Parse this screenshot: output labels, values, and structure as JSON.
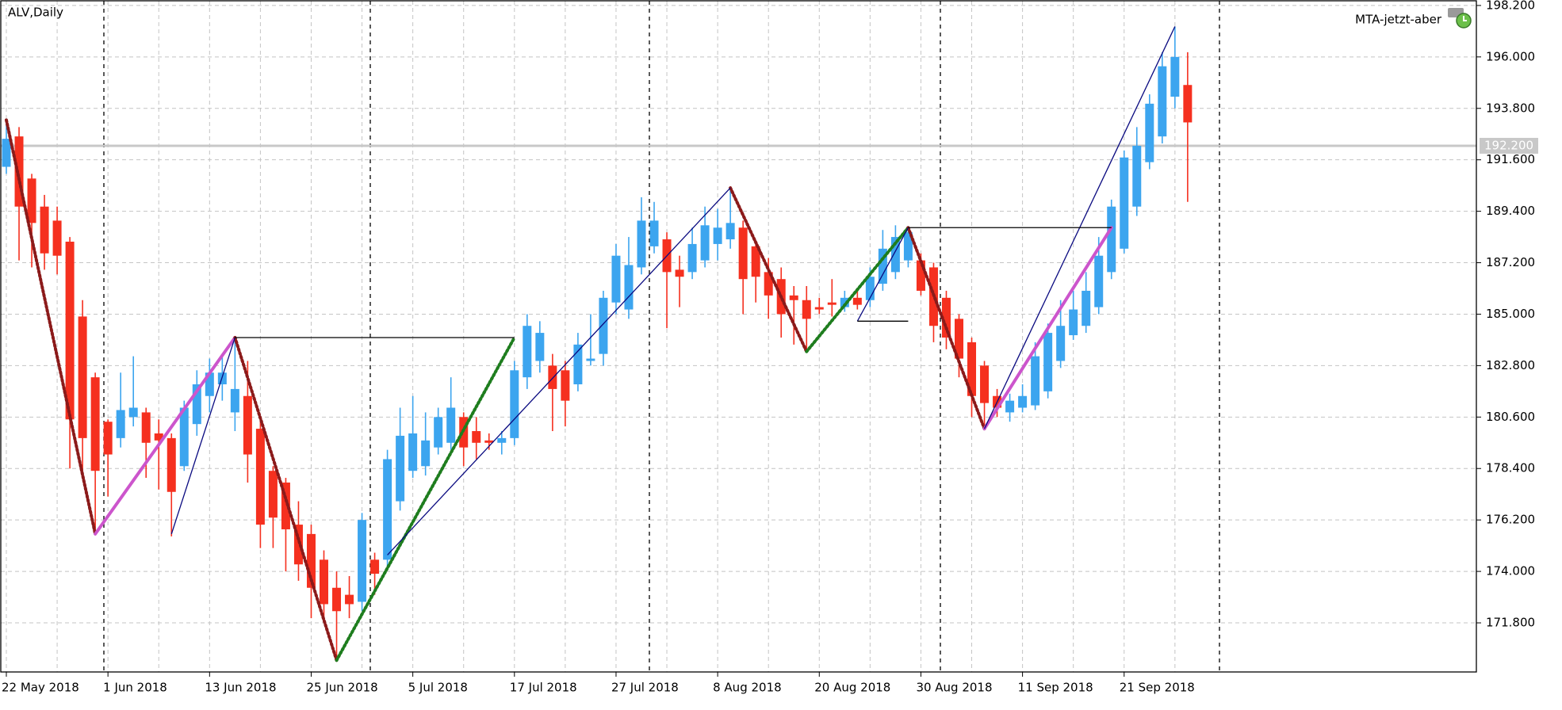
{
  "chart_data": {
    "type": "candlestick",
    "title": "ALV,Daily",
    "indicator": "MTA-jetzt-aber",
    "categories": [
      "22 May 2018",
      null,
      null,
      null,
      null,
      null,
      null,
      null,
      "1 Jun 2018",
      null,
      null,
      null,
      null,
      null,
      null,
      null,
      "13 Jun 2018",
      null,
      null,
      null,
      null,
      null,
      null,
      null,
      "25 Jun 2018",
      null,
      null,
      null,
      null,
      null,
      null,
      null,
      "5 Jul 2018",
      null,
      null,
      null,
      null,
      null,
      null,
      null,
      "17 Jul 2018",
      null,
      null,
      null,
      null,
      null,
      null,
      null,
      "27 Jul 2018",
      null,
      null,
      null,
      null,
      null,
      null,
      null,
      "8 Aug 2018",
      null,
      null,
      null,
      null,
      null,
      null,
      null,
      "20 Aug 2018",
      null,
      null,
      null,
      null,
      null,
      null,
      null,
      "30 Aug 2018",
      null,
      null,
      null,
      null,
      null,
      null,
      null,
      "11 Sep 2018",
      null,
      null,
      null,
      null,
      null,
      null,
      null,
      "21 Sep 2018",
      null,
      null,
      null,
      null,
      null
    ],
    "open": [
      191.3,
      192.6,
      190.8,
      189.6,
      189.0,
      188.1,
      184.9,
      182.3,
      180.4,
      179.7,
      180.6,
      180.8,
      179.9,
      179.7,
      178.5,
      180.3,
      181.5,
      182.0,
      180.8,
      181.5,
      180.1,
      178.3,
      177.8,
      176.0,
      175.6,
      174.5,
      173.3,
      173.0,
      172.7,
      174.5,
      174.5,
      177.0,
      178.3,
      178.5,
      179.3,
      179.5,
      180.6,
      180.0,
      179.6,
      179.5,
      179.7,
      182.3,
      183.0,
      182.8,
      182.6,
      182.0,
      183.0,
      183.3,
      185.5,
      185.2,
      187.0,
      187.9,
      188.2,
      186.9,
      186.8,
      187.3,
      188.0,
      188.2,
      188.7,
      187.9,
      186.8,
      186.5,
      185.8,
      185.6,
      185.3,
      185.5,
      185.3,
      185.7,
      185.6,
      186.3,
      186.8,
      187.3,
      187.3,
      187.0,
      185.7,
      184.8,
      183.8,
      182.8,
      181.5,
      180.8,
      181.0,
      181.1,
      181.7,
      183.0,
      184.1,
      184.5,
      185.3,
      186.8,
      187.8,
      189.6,
      191.5,
      192.6,
      194.3,
      194.8
    ],
    "high": [
      193.3,
      193.0,
      191.0,
      190.1,
      189.6,
      188.3,
      185.6,
      182.5,
      180.5,
      182.5,
      183.2,
      181.0,
      180.5,
      179.9,
      181.3,
      182.6,
      183.1,
      183.3,
      184.0,
      183.0,
      180.5,
      178.5,
      178.0,
      177.0,
      176.0,
      174.9,
      174.0,
      173.8,
      176.5,
      174.8,
      179.2,
      181.0,
      181.5,
      180.8,
      181.0,
      182.3,
      180.8,
      180.6,
      179.9,
      180.0,
      183.0,
      185.0,
      184.7,
      183.3,
      183.0,
      184.2,
      185.0,
      186.0,
      188.0,
      188.3,
      190.0,
      189.8,
      188.5,
      187.5,
      188.7,
      189.6,
      189.5,
      190.4,
      189.0,
      188.1,
      187.4,
      187.0,
      186.2,
      186.2,
      185.7,
      186.5,
      186.0,
      186.1,
      187.0,
      188.6,
      188.8,
      188.7,
      187.6,
      187.2,
      186.0,
      185.0,
      184.0,
      183.0,
      181.8,
      181.6,
      182.0,
      183.8,
      184.6,
      185.6,
      186.0,
      186.8,
      188.3,
      189.9,
      192.0,
      193.0,
      194.4,
      196.2,
      197.3,
      196.2
    ],
    "low": [
      191.0,
      187.3,
      187.0,
      186.9,
      186.7,
      178.4,
      178.0,
      175.6,
      177.2,
      179.3,
      180.2,
      178.0,
      177.5,
      175.5,
      178.3,
      179.8,
      180.8,
      181.3,
      180.0,
      177.8,
      175.0,
      175.0,
      174.0,
      173.6,
      172.0,
      171.8,
      170.2,
      172.0,
      172.3,
      173.0,
      174.2,
      176.6,
      178.0,
      178.1,
      179.0,
      179.2,
      178.5,
      178.8,
      179.2,
      179.0,
      179.4,
      181.8,
      182.5,
      180.0,
      180.2,
      181.7,
      182.8,
      182.8,
      185.0,
      184.8,
      186.7,
      187.6,
      184.4,
      185.3,
      186.5,
      187.0,
      187.3,
      187.8,
      185.0,
      185.5,
      184.8,
      184.0,
      183.7,
      183.4,
      185.0,
      184.9,
      185.1,
      185.2,
      185.3,
      186.0,
      186.5,
      187.0,
      185.8,
      183.8,
      183.5,
      182.3,
      180.6,
      180.1,
      180.6,
      180.4,
      180.8,
      180.9,
      181.4,
      182.7,
      183.9,
      184.2,
      185.0,
      186.5,
      187.6,
      189.2,
      191.2,
      192.3,
      193.8,
      189.8
    ],
    "close": [
      192.5,
      189.6,
      188.9,
      187.6,
      187.5,
      180.5,
      179.7,
      178.3,
      179.0,
      180.9,
      181.0,
      179.5,
      179.6,
      177.4,
      181.0,
      182.0,
      182.5,
      182.5,
      181.8,
      179.0,
      176.0,
      176.3,
      175.8,
      174.3,
      173.3,
      172.6,
      172.3,
      172.6,
      176.2,
      173.9,
      178.8,
      179.8,
      179.9,
      179.6,
      180.6,
      181.0,
      179.3,
      179.5,
      179.5,
      179.7,
      182.6,
      184.5,
      184.2,
      181.8,
      181.3,
      183.7,
      183.1,
      185.7,
      187.5,
      187.1,
      189.0,
      189.0,
      186.8,
      186.6,
      188.0,
      188.8,
      188.7,
      188.9,
      186.5,
      186.6,
      185.8,
      185.0,
      185.6,
      184.8,
      185.2,
      185.4,
      185.7,
      185.4,
      186.6,
      187.8,
      188.3,
      188.5,
      186.0,
      184.5,
      184.0,
      183.1,
      181.5,
      181.2,
      181.0,
      181.3,
      181.5,
      183.2,
      184.2,
      184.5,
      185.2,
      186.0,
      187.5,
      189.6,
      191.7,
      192.2,
      194.0,
      195.6,
      196.0,
      193.2
    ],
    "up_color": "#3ca5ef",
    "down_color": "#f5301f",
    "ylim": [
      169.7,
      198.4
    ],
    "yticks": [
      {
        "value": 198.2,
        "label": "198.200"
      },
      {
        "value": 196.0,
        "label": "196.000"
      },
      {
        "value": 193.8,
        "label": "193.800"
      },
      {
        "value": 191.6,
        "label": "191.600"
      },
      {
        "value": 189.4,
        "label": "189.400"
      },
      {
        "value": 187.2,
        "label": "187.200"
      },
      {
        "value": 185.0,
        "label": "185.000"
      },
      {
        "value": 182.8,
        "label": "182.800"
      },
      {
        "value": 180.6,
        "label": "180.600"
      },
      {
        "value": 178.4,
        "label": "178.400"
      },
      {
        "value": 176.2,
        "label": "176.200"
      },
      {
        "value": 174.0,
        "label": "174.000"
      },
      {
        "value": 171.8,
        "label": "171.800"
      }
    ],
    "grid": true,
    "price_line": {
      "value": 192.2,
      "label": "192.200",
      "color": "#c8c8c8"
    },
    "overlays": [
      {
        "color": "#8b1a1a",
        "style": "dotted",
        "x": [
          0,
          7
        ],
        "y": [
          193.3,
          175.6
        ]
      },
      {
        "color": "#cc55cc",
        "style": "thick",
        "x": [
          7,
          18
        ],
        "y": [
          175.6,
          184.0
        ]
      },
      {
        "color": "#8b1a1a",
        "style": "dotted",
        "x": [
          18,
          26
        ],
        "y": [
          184.0,
          170.2
        ]
      },
      {
        "color": "#1e7d1e",
        "style": "dotted",
        "x": [
          26,
          40
        ],
        "y": [
          170.2,
          184.0
        ]
      },
      {
        "color": "#8b1a1a",
        "style": "dotted",
        "x": [
          57,
          63
        ],
        "y": [
          190.4,
          183.4
        ]
      },
      {
        "color": "#1e7d1e",
        "style": "dotted",
        "x": [
          63,
          71
        ],
        "y": [
          183.4,
          188.7
        ]
      },
      {
        "color": "#8b1a1a",
        "style": "dotted",
        "x": [
          71,
          77
        ],
        "y": [
          188.7,
          180.1
        ]
      },
      {
        "color": "#cc55cc",
        "style": "thick",
        "x": [
          77,
          87
        ],
        "y": [
          180.1,
          188.7
        ]
      },
      {
        "color": "#0a0a80",
        "style": "thin",
        "x": [
          13,
          18
        ],
        "y": [
          175.6,
          184.0
        ]
      },
      {
        "color": "#0a0a80",
        "style": "thin",
        "x": [
          30,
          57
        ],
        "y": [
          174.7,
          190.4
        ]
      },
      {
        "color": "#0a0a80",
        "style": "thin",
        "x": [
          67,
          71
        ],
        "y": [
          184.7,
          188.7
        ]
      },
      {
        "color": "#0a0a80",
        "style": "thin",
        "x": [
          77,
          92
        ],
        "y": [
          180.1,
          197.3
        ]
      },
      {
        "color": "#000000",
        "style": "thin",
        "x": [
          18,
          40
        ],
        "y": [
          184.0,
          184.0
        ]
      },
      {
        "color": "#000000",
        "style": "thin",
        "x": [
          67,
          71
        ],
        "y": [
          184.7,
          184.7
        ]
      },
      {
        "color": "#000000",
        "style": "thin",
        "x": [
          71,
          87
        ],
        "y": [
          188.7,
          188.7
        ]
      }
    ]
  }
}
